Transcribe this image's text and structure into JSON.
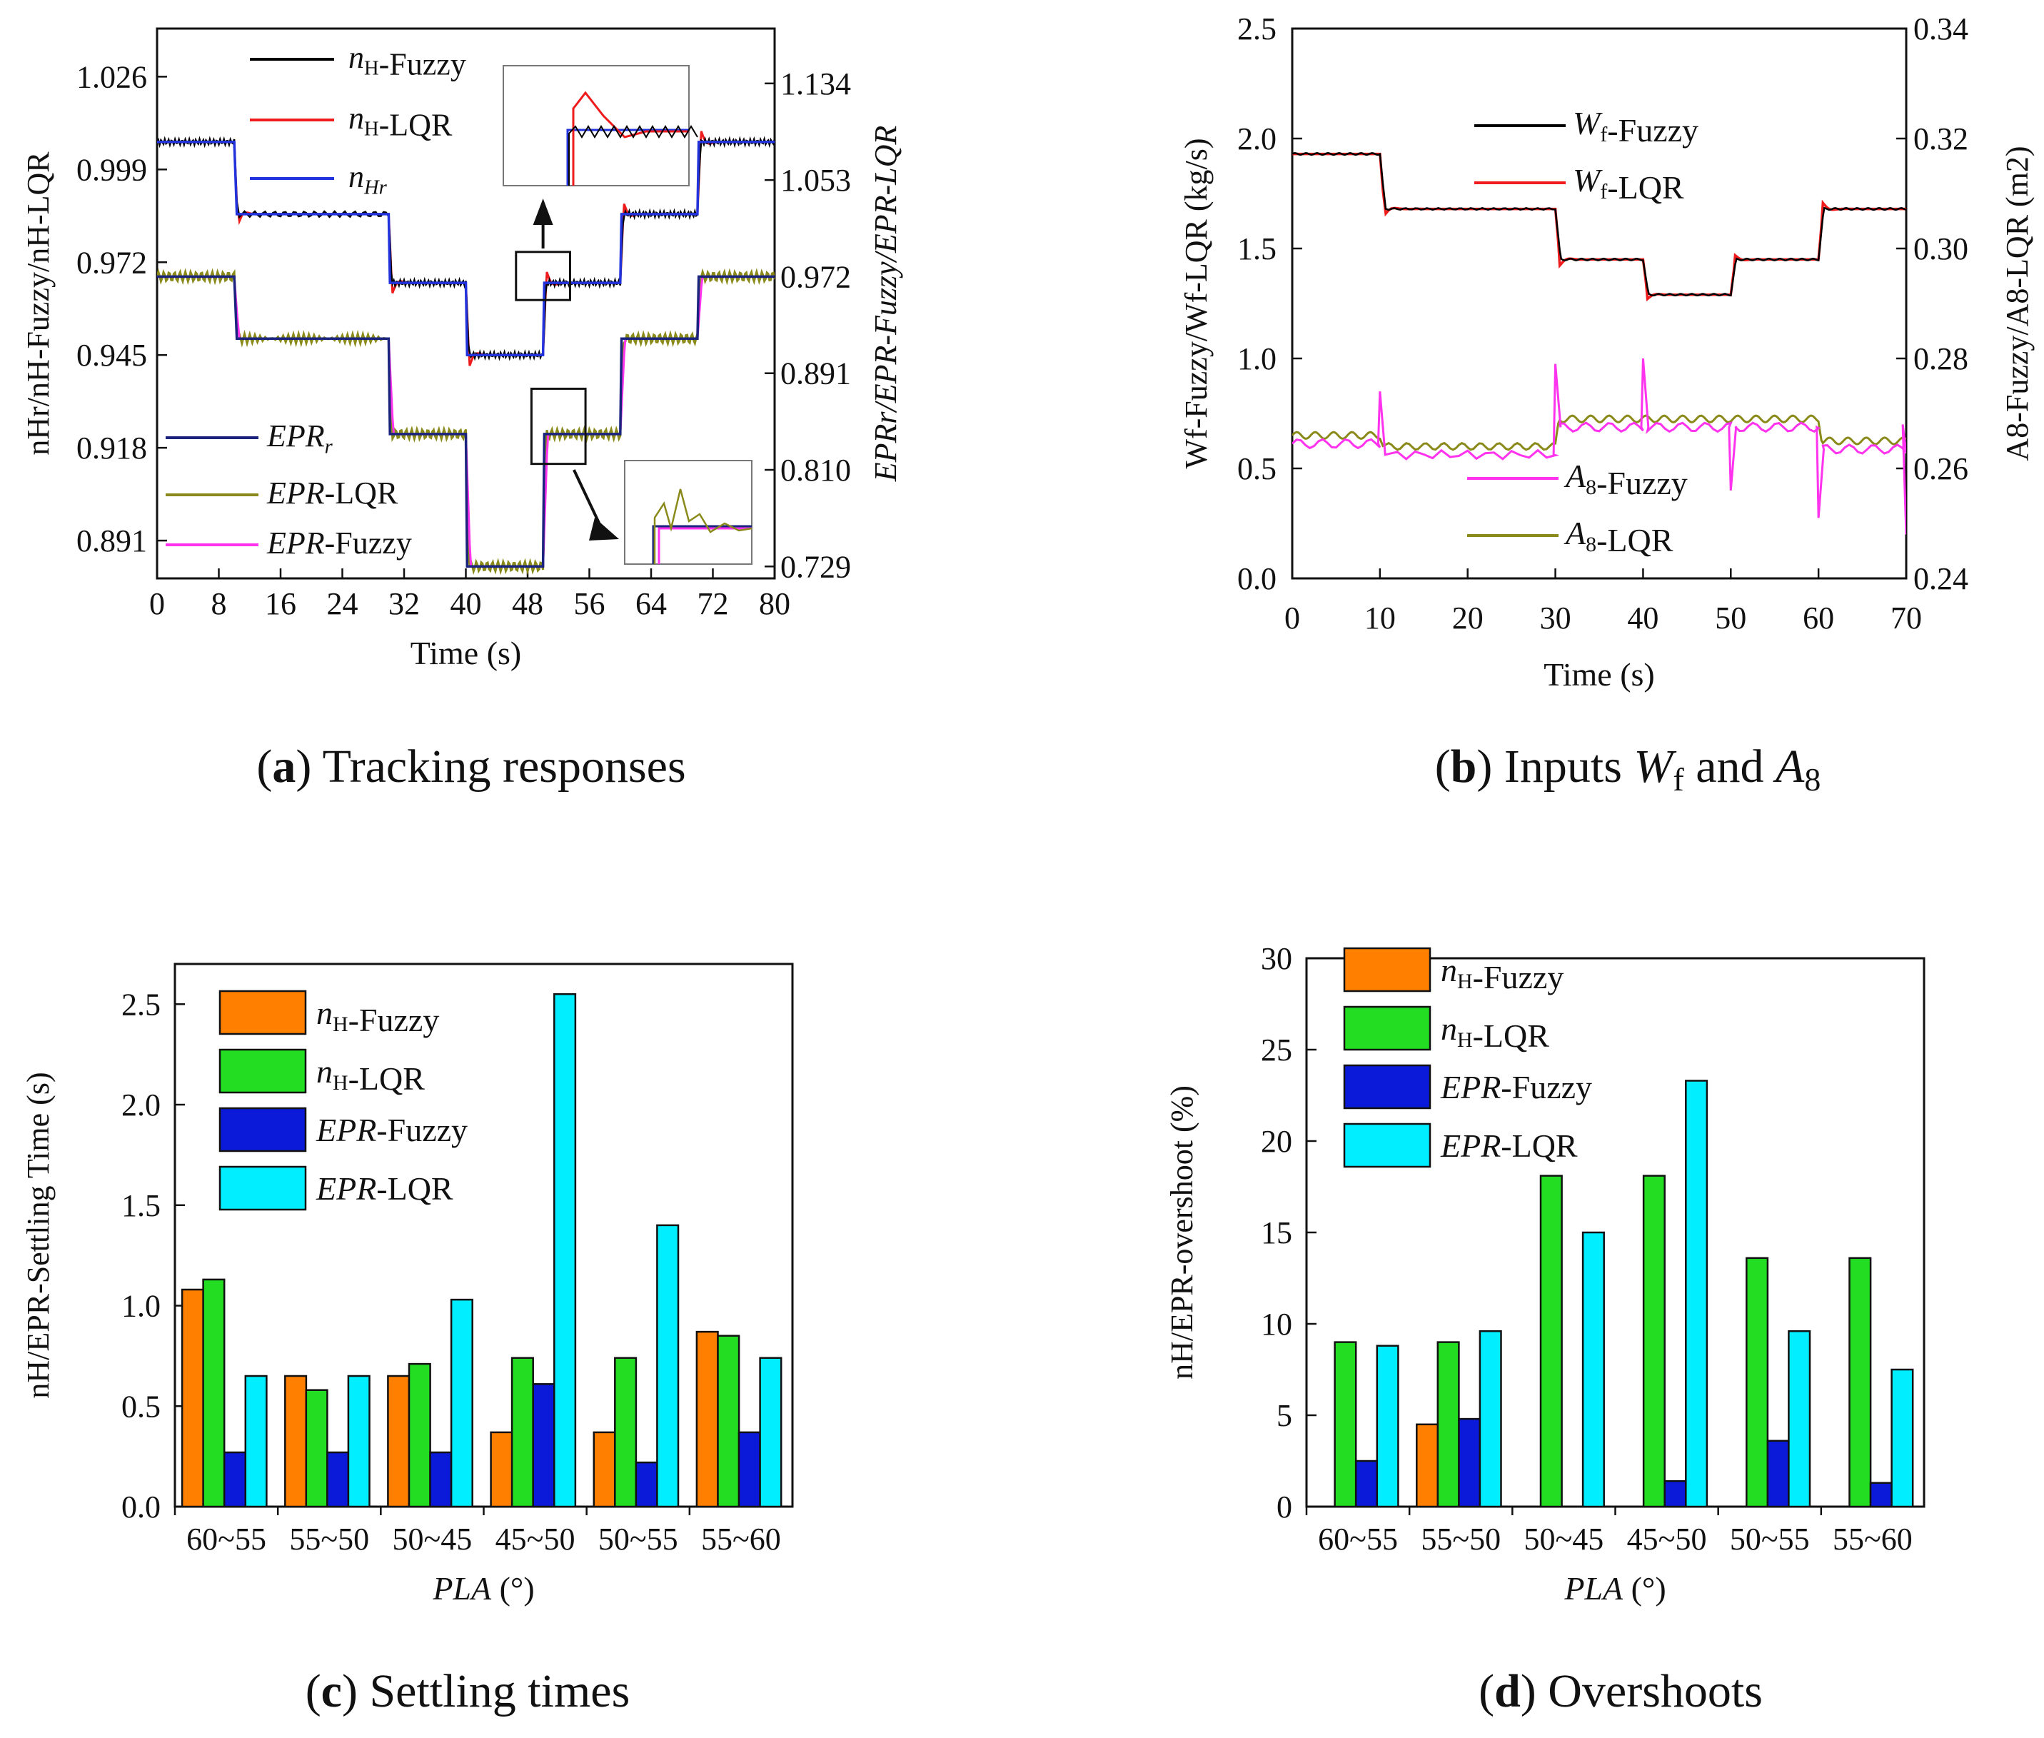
{
  "captions": {
    "a": {
      "letter": "a",
      "text": "Tracking responses"
    },
    "b": {
      "letter": "b",
      "text": "Inputs",
      "w": "W",
      "w_sub": "f",
      "and": "and",
      "a": "A",
      "a_sub": "8"
    },
    "c": {
      "letter": "c",
      "text": "Settling times"
    },
    "d": {
      "letter": "d",
      "text": "Overshoots"
    }
  },
  "colors": {
    "black": "#000000",
    "red": "#ee1c1c",
    "blue": "#2233dd",
    "navy": "#1a237e",
    "olive": "#8a8a1a",
    "magenta": "#ff33ee",
    "orange": "#ff8000",
    "green": "#22dd22",
    "darkblue": "#0a1ad8",
    "cyan": "#00eeff"
  },
  "chart_data": [
    {
      "id": "a",
      "type": "line",
      "title": "Tracking responses",
      "xlabel": "Time (s)",
      "ylabel": "nHr/nH-Fuzzy/nH-LQR",
      "ylabel2": "EPRr/EPR-Fuzzy/EPR-LQR",
      "xlim": [
        0,
        80
      ],
      "ylim": [
        0.88,
        1.04
      ],
      "ylim2": [
        0.719,
        1.18
      ],
      "x_ticks": [
        "0",
        "8",
        "16",
        "24",
        "32",
        "40",
        "48",
        "56",
        "64",
        "72",
        "80"
      ],
      "y_ticks": [
        "1.026",
        "0.999",
        "0.972",
        "0.945",
        "0.918",
        "0.891"
      ],
      "y2_ticks": [
        "1.134",
        "1.053",
        "0.972",
        "0.891",
        "0.810",
        "0.729"
      ],
      "nH_reference_steps": {
        "t": [
          0,
          10,
          30,
          40,
          50,
          60,
          70,
          80
        ],
        "v": [
          1.007,
          0.986,
          0.966,
          0.945,
          0.966,
          0.986,
          1.007,
          1.007
        ]
      },
      "EPR_reference_steps": {
        "t": [
          0,
          10,
          30,
          40,
          50,
          60,
          70,
          80
        ],
        "v": [
          0.972,
          0.92,
          0.84,
          0.729,
          0.84,
          0.92,
          0.972,
          0.972
        ]
      },
      "legend": [
        {
          "name": "Fuzzy",
          "prefix": "n",
          "sub": "H",
          "color": "#000000"
        },
        {
          "name": "LQR",
          "prefix": "n",
          "sub": "H",
          "color": "#ee1c1c"
        },
        {
          "name": "",
          "prefix": "n",
          "sub": "Hr",
          "color": "#2233dd"
        },
        {
          "name": "",
          "prefix": "EPR",
          "sub": "r",
          "color": "#1a237e"
        },
        {
          "name": "LQR",
          "prefix": "EPR",
          "sub": "",
          "color": "#8a8a1a"
        },
        {
          "name": "Fuzzy",
          "prefix": "EPR",
          "sub": "",
          "color": "#ff33ee"
        }
      ]
    },
    {
      "id": "b",
      "type": "line",
      "title": "Inputs Wf and A8",
      "xlabel": "Time (s)",
      "ylabel": "Wf-Fuzzy/Wf-LQR (kg/s)",
      "ylabel2": "A8-Fuzzy/A8-LQR (m2)",
      "xlim": [
        0,
        70
      ],
      "ylim": [
        0,
        2.5
      ],
      "ylim2": [
        0.24,
        0.34
      ],
      "x_ticks": [
        "0",
        "10",
        "20",
        "30",
        "40",
        "50",
        "60",
        "70"
      ],
      "y_ticks": [
        "0.0",
        "0.5",
        "1.0",
        "1.5",
        "2.0",
        "2.5"
      ],
      "y2_ticks": [
        "0.24",
        "0.26",
        "0.28",
        "0.30",
        "0.32",
        "0.34"
      ],
      "Wf_steps": {
        "t": [
          0,
          10,
          30,
          40,
          50,
          60,
          70
        ],
        "v": [
          1.93,
          1.68,
          1.45,
          1.29,
          1.45,
          1.68,
          1.68
        ]
      },
      "A8_steps": {
        "t": [
          0,
          10,
          30,
          40,
          50,
          60,
          70
        ],
        "v": [
          0.266,
          0.264,
          0.269,
          0.269,
          0.269,
          0.265,
          0.265
        ]
      },
      "legend": [
        {
          "name": "Fuzzy",
          "prefix": "W",
          "sub": "f",
          "color": "#000000"
        },
        {
          "name": "LQR",
          "prefix": "W",
          "sub": "f",
          "color": "#ee1c1c"
        },
        {
          "name": "Fuzzy",
          "prefix": "A",
          "sub": "8",
          "color": "#ff33ee"
        },
        {
          "name": "LQR",
          "prefix": "A",
          "sub": "8",
          "color": "#8a8a1a"
        }
      ]
    },
    {
      "id": "c",
      "type": "bar",
      "title": "Settling times",
      "xlabel": "PLA (°)",
      "ylabel": "nH/EPR-Settling Time (s)",
      "ylim": [
        0,
        2.7
      ],
      "y_ticks": [
        "0.0",
        "0.5",
        "1.0",
        "1.5",
        "2.0",
        "2.5"
      ],
      "categories": [
        "60~55",
        "55~50",
        "50~45",
        "45~50",
        "50~55",
        "55~60"
      ],
      "series": [
        {
          "name": "Fuzzy",
          "prefix": "n",
          "sub": "H",
          "color": "#ff8000",
          "values": [
            1.08,
            0.65,
            0.65,
            0.37,
            0.37,
            0.87
          ]
        },
        {
          "name": "LQR",
          "prefix": "n",
          "sub": "H",
          "color": "#22dd22",
          "values": [
            1.13,
            0.58,
            0.71,
            0.74,
            0.74,
            0.85
          ]
        },
        {
          "name": "Fuzzy",
          "prefix": "EPR",
          "sub": "",
          "color": "#0a1ad8",
          "values": [
            0.27,
            0.27,
            0.27,
            0.61,
            0.22,
            0.37
          ]
        },
        {
          "name": "LQR",
          "prefix": "EPR",
          "sub": "",
          "color": "#00eeff",
          "values": [
            0.65,
            0.65,
            1.03,
            2.55,
            1.4,
            0.74
          ]
        }
      ]
    },
    {
      "id": "d",
      "type": "bar",
      "title": "Overshoots",
      "xlabel": "PLA (°)",
      "ylabel": "nH/EPR-overshoot (%)",
      "ylim": [
        0,
        30
      ],
      "y_ticks": [
        "0",
        "5",
        "10",
        "15",
        "20",
        "25",
        "30"
      ],
      "categories": [
        "60~55",
        "55~50",
        "50~45",
        "45~50",
        "50~55",
        "55~60"
      ],
      "series": [
        {
          "name": "Fuzzy",
          "prefix": "n",
          "sub": "H",
          "color": "#ff8000",
          "values": [
            0,
            4.5,
            0,
            0,
            0,
            0
          ]
        },
        {
          "name": "LQR",
          "prefix": "n",
          "sub": "H",
          "color": "#22dd22",
          "values": [
            9.0,
            9.0,
            18.1,
            18.1,
            13.6,
            13.6
          ]
        },
        {
          "name": "Fuzzy",
          "prefix": "EPR",
          "sub": "",
          "color": "#0a1ad8",
          "values": [
            2.5,
            4.8,
            0,
            1.4,
            3.6,
            1.3
          ]
        },
        {
          "name": "LQR",
          "prefix": "EPR",
          "sub": "",
          "color": "#00eeff",
          "values": [
            8.8,
            9.6,
            15.0,
            23.3,
            9.6,
            7.5
          ]
        }
      ]
    }
  ]
}
